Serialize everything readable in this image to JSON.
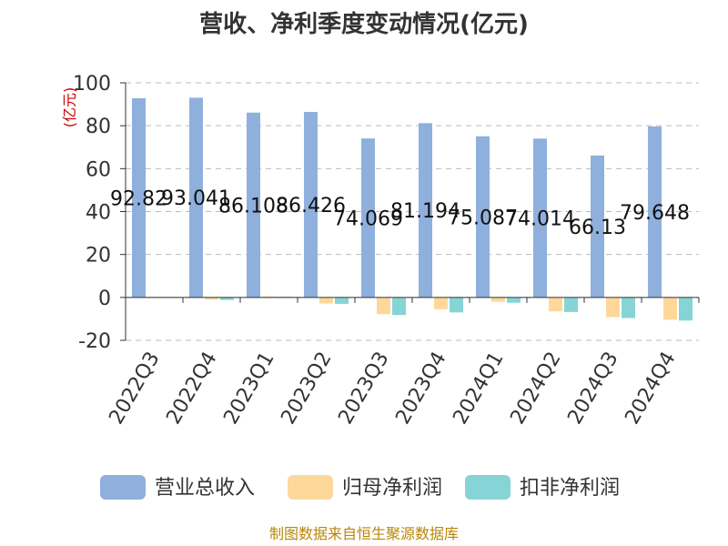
{
  "chart_data": {
    "type": "bar",
    "title": "营收、净利季度变动情况(亿元)",
    "ylabel": "(亿元)",
    "ylim": [
      -20,
      100
    ],
    "yticks": [
      100,
      80,
      60,
      40,
      20,
      0,
      -20
    ],
    "grid": true,
    "categories": [
      "2022Q3",
      "2022Q4",
      "2023Q1",
      "2023Q2",
      "2023Q3",
      "2023Q4",
      "2024Q1",
      "2024Q2",
      "2024Q3",
      "2024Q4"
    ],
    "series": [
      {
        "name": "营业总收入",
        "color": "#8fb0dc",
        "values": [
          92.82,
          93.041,
          86.108,
          86.426,
          74.069,
          81.194,
          75.087,
          74.014,
          66.13,
          79.648
        ],
        "labels": [
          "92.82",
          "93.041",
          "86.108",
          "86.426",
          "74.069",
          "81.194",
          "75.087",
          "74.014",
          "66.13",
          "79.648"
        ]
      },
      {
        "name": "归母净利润",
        "color": "#fdd89a",
        "values": [
          0.3,
          -1.0,
          0.5,
          -2.8,
          -7.8,
          -5.5,
          -2.0,
          -6.5,
          -9.2,
          -10.4
        ]
      },
      {
        "name": "扣非净利润",
        "color": "#86d4d6",
        "values": [
          0.2,
          -1.2,
          0.3,
          -3.0,
          -8.2,
          -7.0,
          -2.5,
          -6.8,
          -9.6,
          -10.8
        ]
      }
    ],
    "legend_position": "bottom",
    "source": "制图数据来自恒生聚源数据库"
  }
}
